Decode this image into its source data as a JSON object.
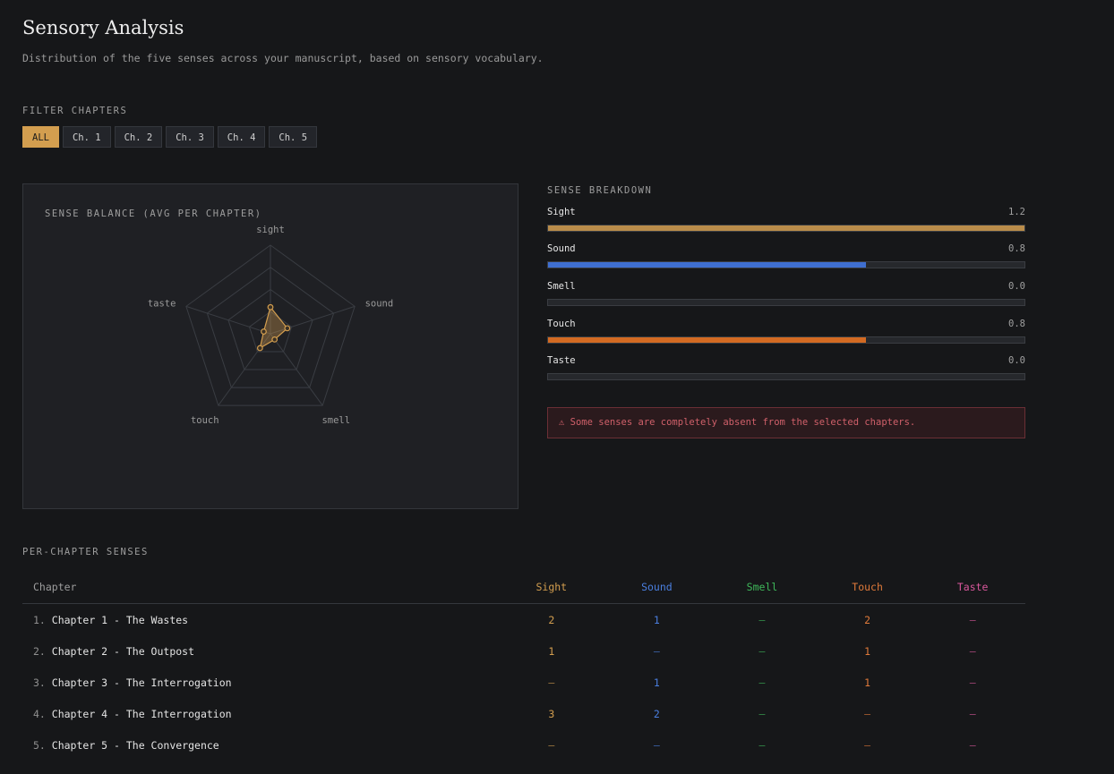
{
  "header": {
    "title": "Sensory Analysis",
    "subtitle": "Distribution of the five senses across your manuscript, based on sensory vocabulary."
  },
  "filters": {
    "label": "FILTER CHAPTERS",
    "options": [
      "ALL",
      "Ch. 1",
      "Ch. 2",
      "Ch. 3",
      "Ch. 4",
      "Ch. 5"
    ],
    "active": "ALL"
  },
  "radar": {
    "label": "SENSE BALANCE (AVG PER CHAPTER)",
    "axes": [
      "sight",
      "sound",
      "smell",
      "touch",
      "taste"
    ],
    "values": [
      1.2,
      0.8,
      0.0,
      0.8,
      0.0
    ],
    "max": 4,
    "rings": 4,
    "accent": "#d39e4f"
  },
  "breakdown": {
    "label": "SENSE BREAKDOWN",
    "max": 1.2,
    "items": [
      {
        "name": "Sight",
        "value": "1.2",
        "fraction": 1.0,
        "color": "#b98c4a"
      },
      {
        "name": "Sound",
        "value": "0.8",
        "fraction": 0.667,
        "color": "#3f6fd0"
      },
      {
        "name": "Smell",
        "value": "0.0",
        "fraction": 0.0,
        "color": "#3fb85a"
      },
      {
        "name": "Touch",
        "value": "0.8",
        "fraction": 0.667,
        "color": "#d36a22"
      },
      {
        "name": "Taste",
        "value": "0.0",
        "fraction": 0.0,
        "color": "#d9579c"
      }
    ],
    "warning": "⚠ Some senses are completely absent from the selected chapters."
  },
  "table": {
    "label": "PER-CHAPTER SENSES",
    "columns": [
      {
        "label": "Chapter",
        "color": "#9d9d9d"
      },
      {
        "label": "Sight",
        "color": "#d39e4f"
      },
      {
        "label": "Sound",
        "color": "#4a7fe0"
      },
      {
        "label": "Smell",
        "color": "#3fb85a"
      },
      {
        "label": "Touch",
        "color": "#e07a3a"
      },
      {
        "label": "Taste",
        "color": "#d9579c"
      }
    ],
    "rows": [
      {
        "index": "1.",
        "name": "Chapter 1 - The Wastes",
        "cells": [
          "2",
          "1",
          "—",
          "2",
          "—"
        ]
      },
      {
        "index": "2.",
        "name": "Chapter 2 - The Outpost",
        "cells": [
          "1",
          "—",
          "—",
          "1",
          "—"
        ]
      },
      {
        "index": "3.",
        "name": "Chapter 3 - The Interrogation",
        "cells": [
          "—",
          "1",
          "—",
          "1",
          "—"
        ]
      },
      {
        "index": "4.",
        "name": "Chapter 4 - The Interrogation",
        "cells": [
          "3",
          "2",
          "—",
          "—",
          "—"
        ]
      },
      {
        "index": "5.",
        "name": "Chapter 5 - The Convergence",
        "cells": [
          "—",
          "—",
          "—",
          "—",
          "—"
        ]
      }
    ]
  }
}
